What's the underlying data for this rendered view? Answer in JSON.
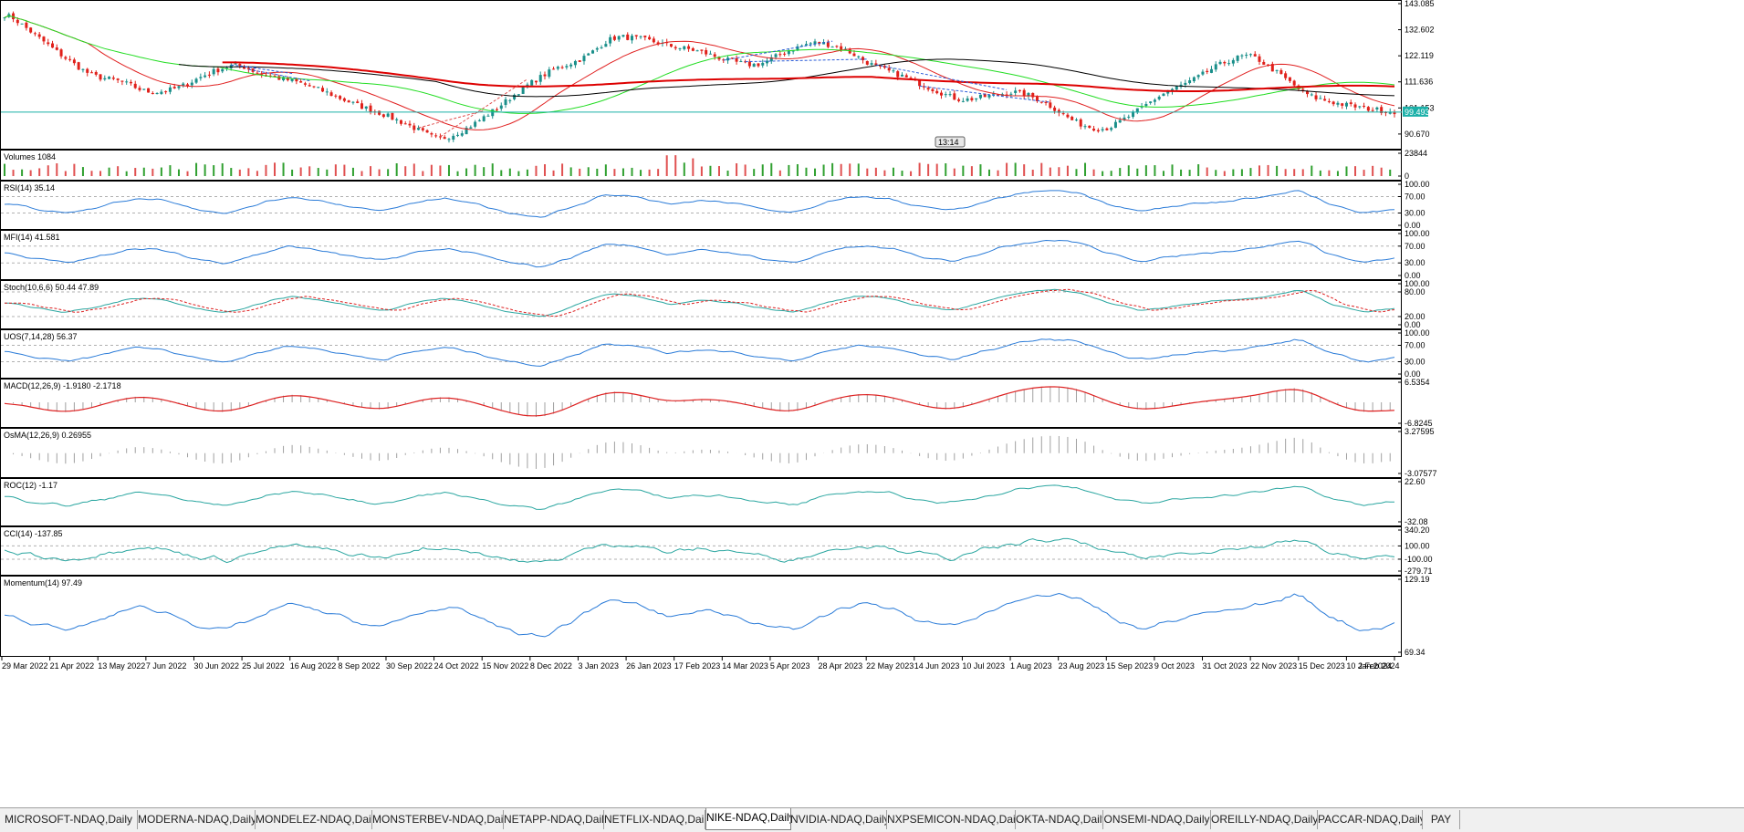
{
  "colors": {
    "bull": "#1a8f8a",
    "bear": "#e0201a",
    "ma_fast": "#e02020",
    "ma_slow_green": "#22dd22",
    "ma_long_red": "#dd0000",
    "ma_black": "#000000",
    "indicator_blue": "#2a7bd8",
    "indicator_teal": "#2aa6a0",
    "macd_signal": "#dd2020",
    "histogram": "#a0a0a0",
    "price_line": "#1ab0a8",
    "volume_red": "#e05050",
    "volume_green": "#30a030"
  },
  "price_panel": {
    "price_axis_labels": [
      "143.085",
      "132.602",
      "122.119",
      "111.636",
      "101.153",
      "90.670"
    ],
    "current_price": "99.493",
    "clock_text": "13:14",
    "chart_data": {
      "type": "line",
      "title": "",
      "ylim": [
        85.5,
        143.085
      ],
      "x_range": [
        "29 Mar 2022",
        "2 Feb 2024"
      ],
      "series": [
        {
          "name": "",
          "values": [
            140,
            131,
            122,
            114,
            112,
            107,
            109,
            115,
            119,
            114,
            112,
            108,
            103,
            99,
            94,
            88,
            93,
            101,
            110,
            117,
            121,
            130,
            129,
            126,
            124,
            120,
            118,
            124,
            128,
            125,
            118,
            114,
            109,
            104,
            106,
            108,
            103,
            95,
            92,
            99,
            107,
            112,
            119,
            123,
            115,
            106,
            103,
            101,
            99.5
          ]
        }
      ]
    },
    "events": [
      {
        "label": "",
        "value": 1084
      }
    ]
  },
  "panels": [
    {
      "name": "volumes",
      "label": "Volumes 1084",
      "axis_labels": [
        "23844",
        "0"
      ]
    },
    {
      "name": "rsi",
      "label": "RSI(14) 35.14",
      "axis_labels": [
        "100.00",
        "70.00",
        "30.00",
        "0.00"
      ]
    },
    {
      "name": "mfi",
      "label": "MFI(14) 41.581",
      "axis_labels": [
        "100.00",
        "70.00",
        "30.00",
        "0.00"
      ]
    },
    {
      "name": "stoch",
      "label": "Stoch(10,6,6) 50.44 47.89",
      "axis_labels": [
        "100.00",
        "80.00",
        "20.00",
        "0.00"
      ]
    },
    {
      "name": "uos",
      "label": "UOS(7,14,28) 56.37",
      "axis_labels": [
        "100.00",
        "70.00",
        "30.00",
        "0.00"
      ]
    },
    {
      "name": "macd",
      "label": "MACD(12,26,9) -1.9180 -2.1718",
      "axis_labels": [
        "6.5354",
        "-6.8245"
      ]
    },
    {
      "name": "osma",
      "label": "OsMA(12,26,9) 0.26955",
      "axis_labels": [
        "3.27595",
        "-3.07577"
      ]
    },
    {
      "name": "roc",
      "label": "ROC(12) -1.17",
      "axis_labels": [
        "22.60",
        "-32.08"
      ]
    },
    {
      "name": "cci",
      "label": "CCI(14) -137.85",
      "axis_labels": [
        "340.20",
        "100.00",
        "-100.00",
        "-279.71"
      ]
    },
    {
      "name": "momentum",
      "label": "Momentum(14) 97.49",
      "axis_labels": [
        "129.19",
        "69.34"
      ]
    }
  ],
  "time_axis": [
    "29 Mar 2022",
    "21 Apr 2022",
    "13 May 2022",
    "7 Jun 2022",
    "30 Jun 2022",
    "25 Jul 2022",
    "16 Aug 2022",
    "8 Sep 2022",
    "30 Sep 2022",
    "24 Oct 2022",
    "15 Nov 2022",
    "8 Dec 2022",
    "3 Jan 2023",
    "26 Jan 2023",
    "17 Feb 2023",
    "14 Mar 2023",
    "5 Apr 2023",
    "28 Apr 2023",
    "22 May 2023",
    "14 Jun 2023",
    "10 Jul 2023",
    "1 Aug 2023",
    "23 Aug 2023",
    "15 Sep 2023",
    "9 Oct 2023",
    "31 Oct 2023",
    "22 Nov 2023",
    "15 Dec 2023",
    "10 Jan 2024",
    "2 Feb 2024"
  ],
  "tabs": [
    {
      "label": "MICROSOFT-NDAQ,Daily",
      "active": false
    },
    {
      "label": "MODERNA-NDAQ,Daily",
      "active": false
    },
    {
      "label": "MONDELEZ-NDAQ,Daily",
      "active": false
    },
    {
      "label": "MONSTERBEV-NDAQ,Daily",
      "active": false
    },
    {
      "label": "NETAPP-NDAQ,Daily",
      "active": false
    },
    {
      "label": "NETFLIX-NDAQ,Daily",
      "active": false
    },
    {
      "label": "NIKE-NDAQ,Daily",
      "active": true
    },
    {
      "label": "NVIDIA-NDAQ,Daily",
      "active": false
    },
    {
      "label": "NXPSEMICON-NDAQ,Daily",
      "active": false
    },
    {
      "label": "OKTA-NDAQ,Daily",
      "active": false
    },
    {
      "label": "ONSEMI-NDAQ,Daily",
      "active": false
    },
    {
      "label": "OREILLY-NDAQ,Daily",
      "active": false
    },
    {
      "label": "PACCAR-NDAQ,Daily",
      "active": false
    },
    {
      "label": "PAY",
      "active": false
    }
  ]
}
